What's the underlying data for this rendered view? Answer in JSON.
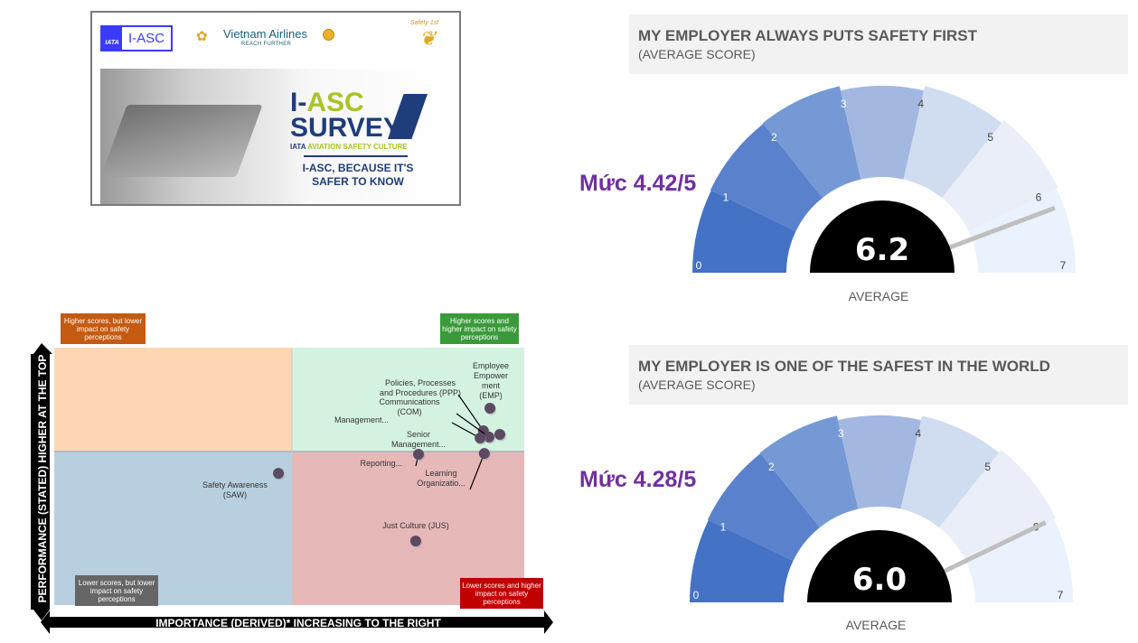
{
  "banner": {
    "iata_logo_text": "IATA",
    "iasc_logo_text": "I-ASC",
    "airline_name": "Vietnam Airlines",
    "airline_tagline": "REACH FURTHER",
    "safety_logo_text": "Safety 1st",
    "survey_title_1a": "I-",
    "survey_title_1b": "ASC",
    "survey_title_2": "SURVEY",
    "survey_sub_a": "IATA ",
    "survey_sub_b": "AVIATION SAFETY CULTURE",
    "survey_tagline_1": "I-ASC, BECAUSE IT'S",
    "survey_tagline_2": "SAFER TO KNOW"
  },
  "colors": {
    "purple": "#7030a0",
    "gauge_base": "#4472c4"
  },
  "chart_data": [
    {
      "type": "gauge",
      "title": "MY EMPLOYER ALWAYS PUTS SAFETY FIRST",
      "subtitle": "(AVERAGE SCORE)",
      "value": 6.2,
      "value_label": "6.2",
      "range": [
        0,
        7
      ],
      "ticks": [
        "0",
        "1",
        "2",
        "3",
        "4",
        "5",
        "6",
        "7"
      ],
      "footer": "AVERAGE",
      "annotation": "Mức 4.42/5"
    },
    {
      "type": "gauge",
      "title": "MY EMPLOYER IS ONE OF THE SAFEST IN THE WORLD",
      "subtitle": "(AVERAGE SCORE)",
      "value": 6.0,
      "value_label": "6.0",
      "range": [
        0,
        7
      ],
      "ticks": [
        "0",
        "1",
        "2",
        "3",
        "4",
        "5",
        "6",
        "7"
      ],
      "footer": "AVERAGE",
      "annotation": "Mức 4.28/5"
    },
    {
      "type": "scatter",
      "title": "",
      "xlabel": "IMPORTANCE (DERIVED)* INCREASING TO THE RIGHT",
      "ylabel": "PERFORMANCE (STATED) HIGHER AT THE TOP",
      "xlim": [
        0,
        100
      ],
      "ylim": [
        0,
        100
      ],
      "quadrant_split": [
        50,
        40
      ],
      "quadrants": {
        "top_left": "Higher scores, but lower impact on safety perceptions",
        "top_right": "Higher scores and higher impact on safety perceptions",
        "bottom_left": "Lower scores, but lower impact on safety perceptions",
        "bottom_right": "Lower scores and higher impact on safety perceptions"
      },
      "points": [
        {
          "label": "Employee Empowerment (EMP)",
          "label_lines": [
            "Employee",
            "Empower",
            "ment",
            "(EMP)"
          ],
          "x": 92.7,
          "y": 76.5
        },
        {
          "label": "Policies, Processes and Procedures (PPP)",
          "label_lines": [
            "Policies, Processes",
            "and Procedures (PPP)"
          ],
          "x": 91.3,
          "y": 67.7
        },
        {
          "label": "Communications (COM)",
          "label_lines": [
            "Communications",
            "(COM)"
          ],
          "x": 92.5,
          "y": 65.3
        },
        {
          "label": "Management...",
          "label_lines": [
            "Management..."
          ],
          "x": 90.6,
          "y": 64.9
        },
        {
          "label": "Senior Management...",
          "label_lines": [
            "Senior",
            "Management..."
          ],
          "x": 94.8,
          "y": 66.3
        },
        {
          "label": "Reporting...",
          "label_lines": [
            "Reporting..."
          ],
          "x": 77.5,
          "y": 58.6
        },
        {
          "label": "Learning Organizatio...",
          "label_lines": [
            "Learning",
            "Organizatio..."
          ],
          "x": 91.5,
          "y": 58.9
        },
        {
          "label": "Safety Awareness (SAW)",
          "label_lines": [
            "Safety Awareness",
            "(SAW)"
          ],
          "x": 47.7,
          "y": 51.2
        },
        {
          "label": "Just Culture (JUS)",
          "label_lines": [
            "Just Culture (JUS)"
          ],
          "x": 76.9,
          "y": 24.9
        }
      ]
    }
  ]
}
